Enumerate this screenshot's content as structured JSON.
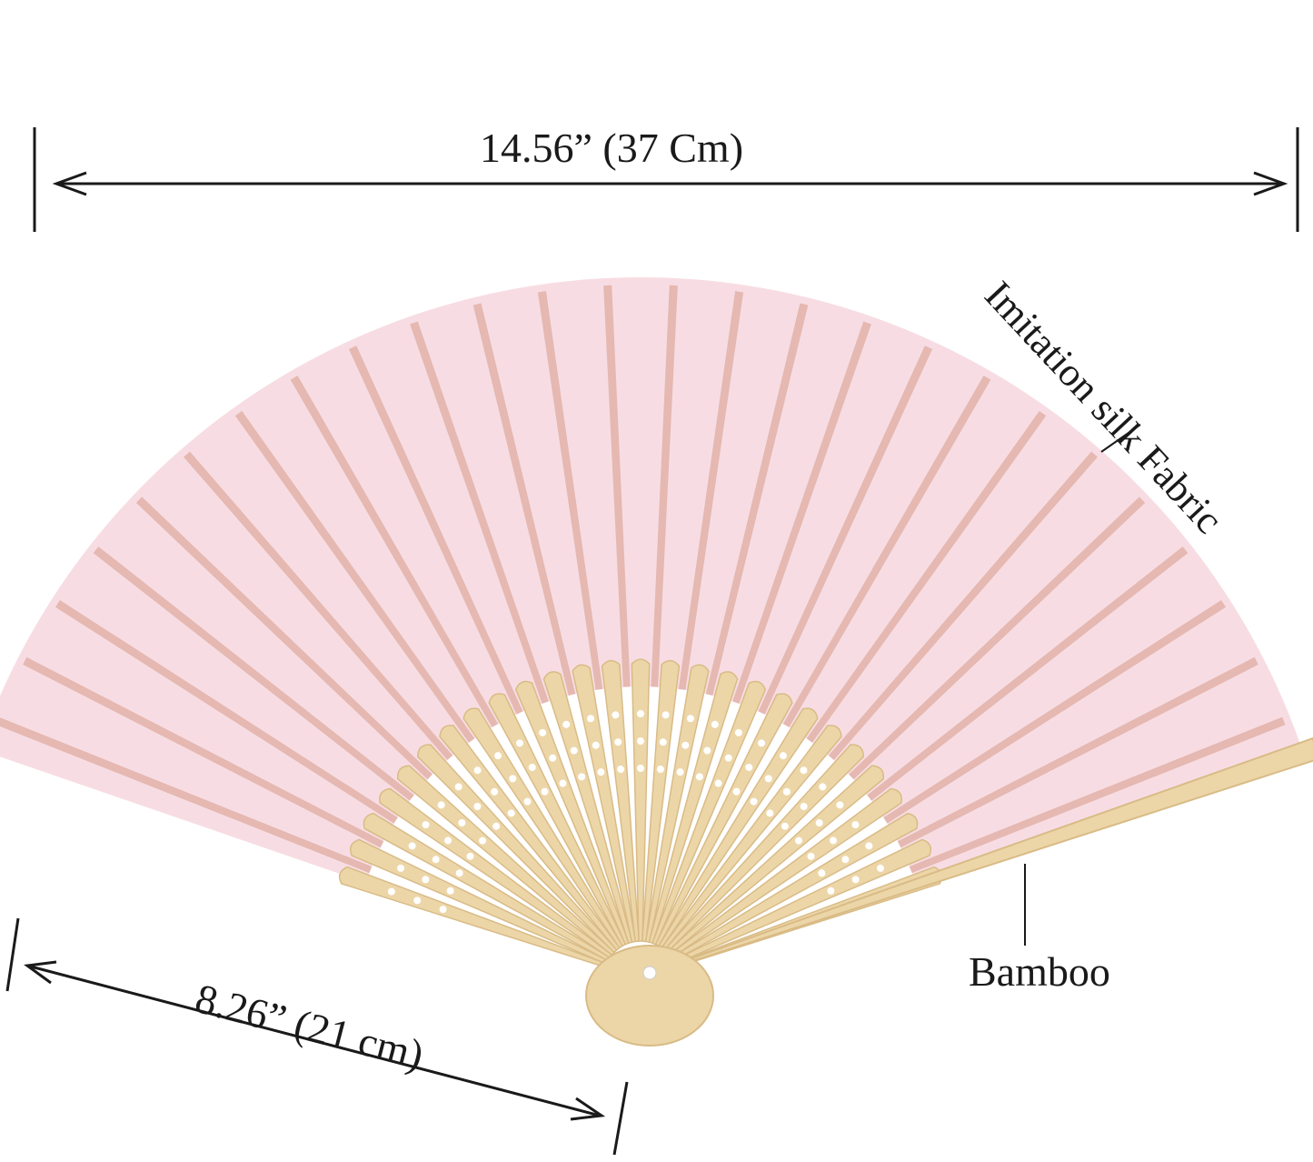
{
  "annotations": {
    "width": "14.56”  (37 Cm)",
    "length": "8.26” (21 cm)",
    "fabric": "Imitation silk Fabric",
    "ribs": "Bamboo"
  },
  "colors": {
    "fabric": "#f7dde3",
    "rib_stripe": "#e2b2a8",
    "bamboo": "#ecd6a8",
    "bamboo_dark": "#d9bb86",
    "line": "#1a1a1a"
  },
  "fan": {
    "rib_count": 26
  }
}
